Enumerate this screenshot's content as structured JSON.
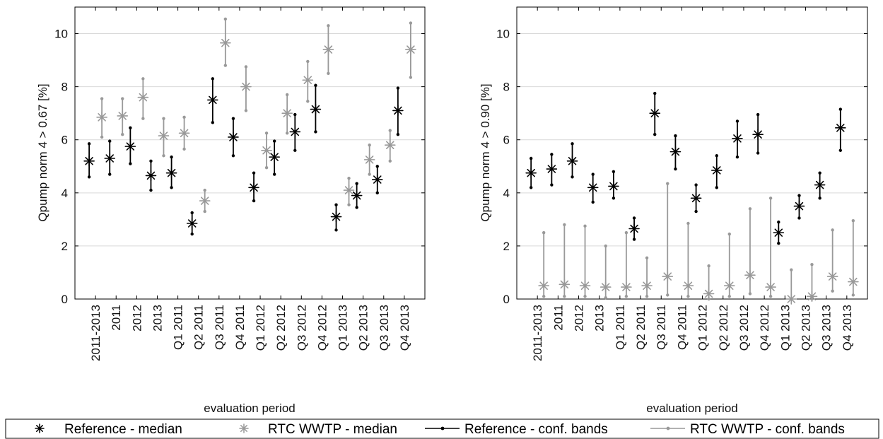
{
  "chart_data": [
    {
      "type": "errorbar",
      "ylabel": "Qpump norm 4 > 0.67 [%]",
      "xlabel": "evaluation period",
      "ylim": [
        0,
        11
      ],
      "yticks": [
        0,
        2,
        4,
        6,
        8,
        10
      ],
      "grid": true,
      "categories": [
        "2011-2013",
        "2011",
        "2012",
        "2013",
        "Q1 2011",
        "Q2 2011",
        "Q3 2011",
        "Q4 2011",
        "Q1 2012",
        "Q2 2012",
        "Q3 2012",
        "Q4 2012",
        "Q1 2013",
        "Q2 2013",
        "Q3 2013",
        "Q4 2013"
      ],
      "series": [
        {
          "name": "Reference",
          "color": "#000000",
          "median": [
            5.2,
            5.3,
            5.75,
            4.65,
            4.75,
            2.85,
            7.5,
            6.1,
            4.2,
            5.35,
            6.3,
            7.15,
            3.1,
            3.9,
            4.5,
            7.1
          ],
          "lower": [
            4.6,
            4.7,
            5.1,
            4.1,
            4.2,
            2.45,
            6.65,
            5.4,
            3.7,
            4.7,
            5.6,
            6.3,
            2.6,
            3.45,
            4.0,
            6.2
          ],
          "upper": [
            5.85,
            5.95,
            6.45,
            5.2,
            5.35,
            3.25,
            8.3,
            6.8,
            4.75,
            5.95,
            6.95,
            8.05,
            3.55,
            4.35,
            5.0,
            7.95
          ]
        },
        {
          "name": "RTC WWTP",
          "color": "#999999",
          "median": [
            6.85,
            6.9,
            7.6,
            6.15,
            6.25,
            3.7,
            9.65,
            8.0,
            5.6,
            7.0,
            8.25,
            9.4,
            4.1,
            5.25,
            5.8,
            9.4
          ],
          "lower": [
            6.1,
            6.2,
            6.8,
            5.4,
            5.65,
            3.3,
            8.8,
            7.1,
            4.95,
            6.25,
            7.45,
            8.5,
            3.55,
            4.7,
            5.2,
            8.35
          ],
          "upper": [
            7.55,
            7.55,
            8.3,
            6.8,
            6.85,
            4.1,
            10.55,
            8.75,
            6.25,
            7.7,
            8.95,
            10.3,
            4.55,
            5.8,
            6.35,
            10.4
          ]
        }
      ]
    },
    {
      "type": "errorbar",
      "ylabel": "Qpump norm 4 > 0.90 [%]",
      "xlabel": "evaluation period",
      "ylim": [
        0,
        11
      ],
      "yticks": [
        0,
        2,
        4,
        6,
        8,
        10
      ],
      "grid": true,
      "categories": [
        "2011-2013",
        "2011",
        "2012",
        "2013",
        "Q1 2011",
        "Q2 2011",
        "Q3 2011",
        "Q4 2011",
        "Q1 2012",
        "Q2 2012",
        "Q3 2012",
        "Q4 2012",
        "Q1 2013",
        "Q2 2013",
        "Q3 2013",
        "Q4 2013"
      ],
      "series": [
        {
          "name": "Reference",
          "color": "#000000",
          "median": [
            4.75,
            4.9,
            5.2,
            4.2,
            4.25,
            2.65,
            7.0,
            5.55,
            3.8,
            4.85,
            6.05,
            6.2,
            2.5,
            3.5,
            4.3,
            6.45
          ],
          "lower": [
            4.2,
            4.3,
            4.6,
            3.65,
            3.8,
            2.25,
            6.2,
            4.9,
            3.3,
            4.2,
            5.35,
            5.5,
            2.1,
            3.05,
            3.8,
            5.6
          ],
          "upper": [
            5.3,
            5.45,
            5.85,
            4.7,
            4.8,
            3.05,
            7.75,
            6.15,
            4.3,
            5.4,
            6.7,
            6.95,
            2.9,
            3.9,
            4.75,
            7.15
          ]
        },
        {
          "name": "RTC WWTP",
          "color": "#999999",
          "median": [
            0.5,
            0.55,
            0.5,
            0.45,
            0.45,
            0.5,
            0.85,
            0.5,
            0.2,
            0.5,
            0.9,
            0.45,
            0.0,
            0.1,
            0.85,
            0.65
          ],
          "lower": [
            0.1,
            0.1,
            0.1,
            0.05,
            0.1,
            0.1,
            0.15,
            0.1,
            0.0,
            0.1,
            0.2,
            0.1,
            0.0,
            0.0,
            0.3,
            0.15
          ],
          "upper": [
            2.5,
            2.8,
            2.75,
            2.0,
            2.5,
            1.55,
            4.35,
            2.85,
            1.25,
            2.45,
            3.4,
            3.8,
            1.1,
            1.3,
            2.6,
            2.95
          ]
        }
      ]
    }
  ],
  "legend": {
    "entries": [
      {
        "label": "Reference - median",
        "icon": "asterisk-marker-icon",
        "color": "#000000"
      },
      {
        "label": "RTC WWTP - median",
        "icon": "asterisk-marker-icon",
        "color": "#999999"
      },
      {
        "label": "Reference - conf. bands",
        "icon": "line-dot-marker-icon",
        "color": "#000000"
      },
      {
        "label": "RTC WWTP - conf. bands",
        "icon": "line-dot-marker-icon",
        "color": "#999999"
      }
    ]
  }
}
